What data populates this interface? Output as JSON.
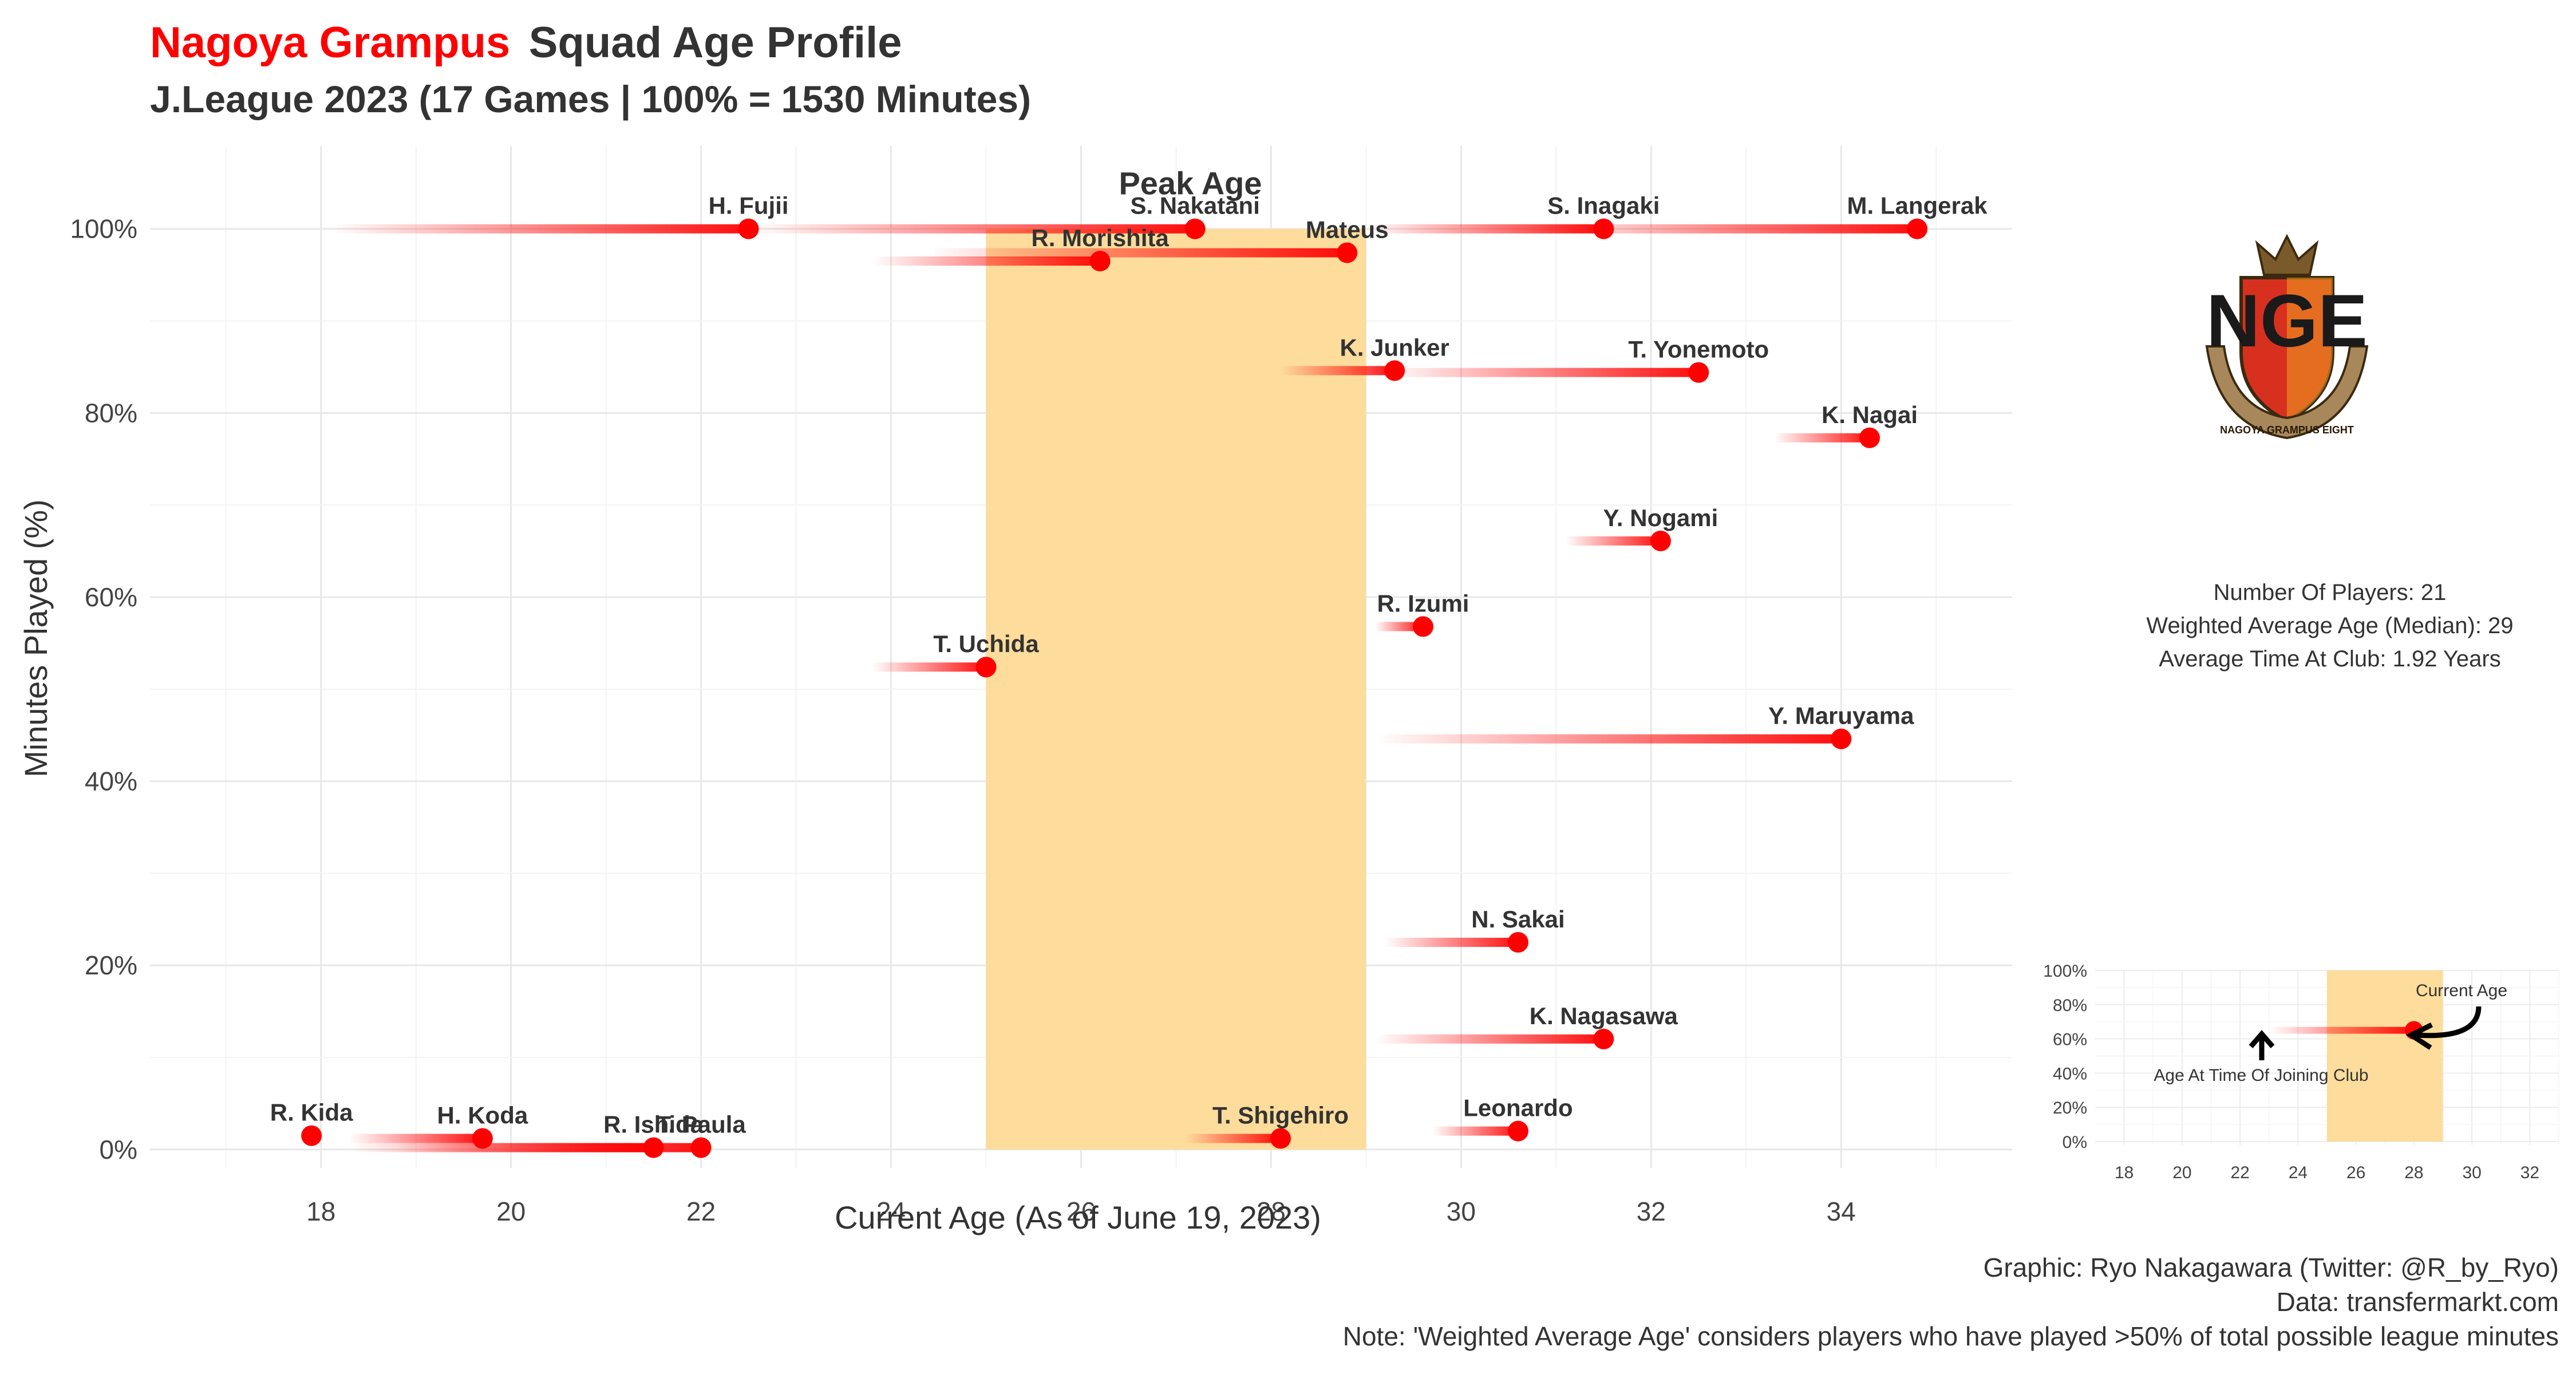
{
  "header": {
    "club": "Nagoya Grampus",
    "title_rest": "Squad Age Profile",
    "subtitle": "J.League 2023 (17 Games | 100% = 1530 Minutes)"
  },
  "colors": {
    "accent": "#ff0000",
    "peak_band": "#fddc9c",
    "text": "#333333",
    "grid": "#e8e8e8"
  },
  "chart_data": {
    "type": "scatter",
    "xlabel": "Current Age (As of June 19, 2023)",
    "ylabel": "Minutes Played (%)",
    "xlim": [
      16.2,
      35.8
    ],
    "ylim": [
      -2,
      109
    ],
    "x_ticks": [
      {
        "v": 18,
        "label": "18"
      },
      {
        "v": 20,
        "label": "20"
      },
      {
        "v": 22,
        "label": "22"
      },
      {
        "v": 24,
        "label": "24"
      },
      {
        "v": 26,
        "label": "26"
      },
      {
        "v": 28,
        "label": "28"
      },
      {
        "v": 30,
        "label": "30"
      },
      {
        "v": 32,
        "label": "32"
      },
      {
        "v": 34,
        "label": "34"
      }
    ],
    "y_ticks": [
      {
        "v": 0,
        "label": "0%"
      },
      {
        "v": 20,
        "label": "20%"
      },
      {
        "v": 40,
        "label": "40%"
      },
      {
        "v": 60,
        "label": "60%"
      },
      {
        "v": 80,
        "label": "80%"
      },
      {
        "v": 100,
        "label": "100%"
      }
    ],
    "peak_age": {
      "label": "Peak Age",
      "from": 25,
      "to": 29
    },
    "players": [
      {
        "name": "H. Fujii",
        "age": 22.5,
        "joined_age": 18.1,
        "minutes_pct": 100
      },
      {
        "name": "S. Nakatani",
        "age": 27.2,
        "joined_age": 22.5,
        "minutes_pct": 100
      },
      {
        "name": "S. Inagaki",
        "age": 31.5,
        "joined_age": 29.0,
        "minutes_pct": 100
      },
      {
        "name": "M. Langerak",
        "age": 34.8,
        "joined_age": 30.7,
        "minutes_pct": 100
      },
      {
        "name": "Mateus",
        "age": 28.8,
        "joined_age": 24.4,
        "minutes_pct": 97.4
      },
      {
        "name": "R. Morishita",
        "age": 26.2,
        "joined_age": 23.8,
        "minutes_pct": 96.5
      },
      {
        "name": "K. Junker",
        "age": 29.3,
        "joined_age": 28.1,
        "minutes_pct": 84.6
      },
      {
        "name": "T. Yonemoto",
        "age": 32.5,
        "joined_age": 29.2,
        "minutes_pct": 84.4
      },
      {
        "name": "K. Nagai",
        "age": 34.3,
        "joined_age": 33.3,
        "minutes_pct": 77.3
      },
      {
        "name": "Y. Nogami",
        "age": 32.1,
        "joined_age": 31.1,
        "minutes_pct": 66.1
      },
      {
        "name": "R. Izumi",
        "age": 29.6,
        "joined_age": 29.1,
        "minutes_pct": 56.8
      },
      {
        "name": "T. Uchida",
        "age": 25.0,
        "joined_age": 23.8,
        "minutes_pct": 52.4
      },
      {
        "name": "Y. Maruyama",
        "age": 34.0,
        "joined_age": 29.1,
        "minutes_pct": 44.6
      },
      {
        "name": "N. Sakai",
        "age": 30.6,
        "joined_age": 29.2,
        "minutes_pct": 22.5
      },
      {
        "name": "K. Nagasawa",
        "age": 31.5,
        "joined_age": 29.1,
        "minutes_pct": 12.0
      },
      {
        "name": "R. Kida",
        "age": 17.9,
        "joined_age": 17.9,
        "minutes_pct": 1.5
      },
      {
        "name": "H. Koda",
        "age": 19.7,
        "joined_age": 18.3,
        "minutes_pct": 1.2
      },
      {
        "name": "R. Ishida",
        "age": 21.5,
        "joined_age": 18.3,
        "minutes_pct": 0.2
      },
      {
        "name": "T. Paula",
        "age": 22.0,
        "joined_age": 18.8,
        "minutes_pct": 0.2
      },
      {
        "name": "T. Shigehiro",
        "age": 28.1,
        "joined_age": 27.1,
        "minutes_pct": 1.2
      },
      {
        "name": "Leonardo",
        "age": 30.6,
        "joined_age": 29.7,
        "minutes_pct": 2.0
      }
    ]
  },
  "stats": {
    "line1": "Number Of Players: 21",
    "line2": "Weighted Average Age (Median): 29",
    "line3": "Average Time At Club: 1.92 Years"
  },
  "logo": {
    "letters": "NGE",
    "ribbon_text": "NAGOYA GRAMPUS EIGHT"
  },
  "legend_inset": {
    "xlim": [
      17,
      33
    ],
    "ylim": [
      -2,
      100
    ],
    "x_ticks": [
      {
        "v": 18,
        "label": "18"
      },
      {
        "v": 20,
        "label": "20"
      },
      {
        "v": 22,
        "label": "22"
      },
      {
        "v": 24,
        "label": "24"
      },
      {
        "v": 26,
        "label": "26"
      },
      {
        "v": 28,
        "label": "28"
      },
      {
        "v": 30,
        "label": "30"
      },
      {
        "v": 32,
        "label": "32"
      }
    ],
    "y_ticks": [
      {
        "v": 0,
        "label": "0%"
      },
      {
        "v": 20,
        "label": "20%"
      },
      {
        "v": 40,
        "label": "40%"
      },
      {
        "v": 60,
        "label": "60%"
      },
      {
        "v": 80,
        "label": "80%"
      },
      {
        "v": 100,
        "label": "100%"
      }
    ],
    "peak": {
      "from": 25,
      "to": 29
    },
    "example": {
      "joined_age": 23,
      "age": 28,
      "minutes_pct": 65
    },
    "label_current": "Current Age",
    "label_joined": "Age At Time Of Joining Club"
  },
  "caption": {
    "line1": "Graphic: Ryo Nakagawara (Twitter: @R_by_Ryo)",
    "line2": "Data: transfermarkt.com",
    "line3": "Note: 'Weighted Average Age' considers players who have played >50% of total possible league minutes"
  }
}
